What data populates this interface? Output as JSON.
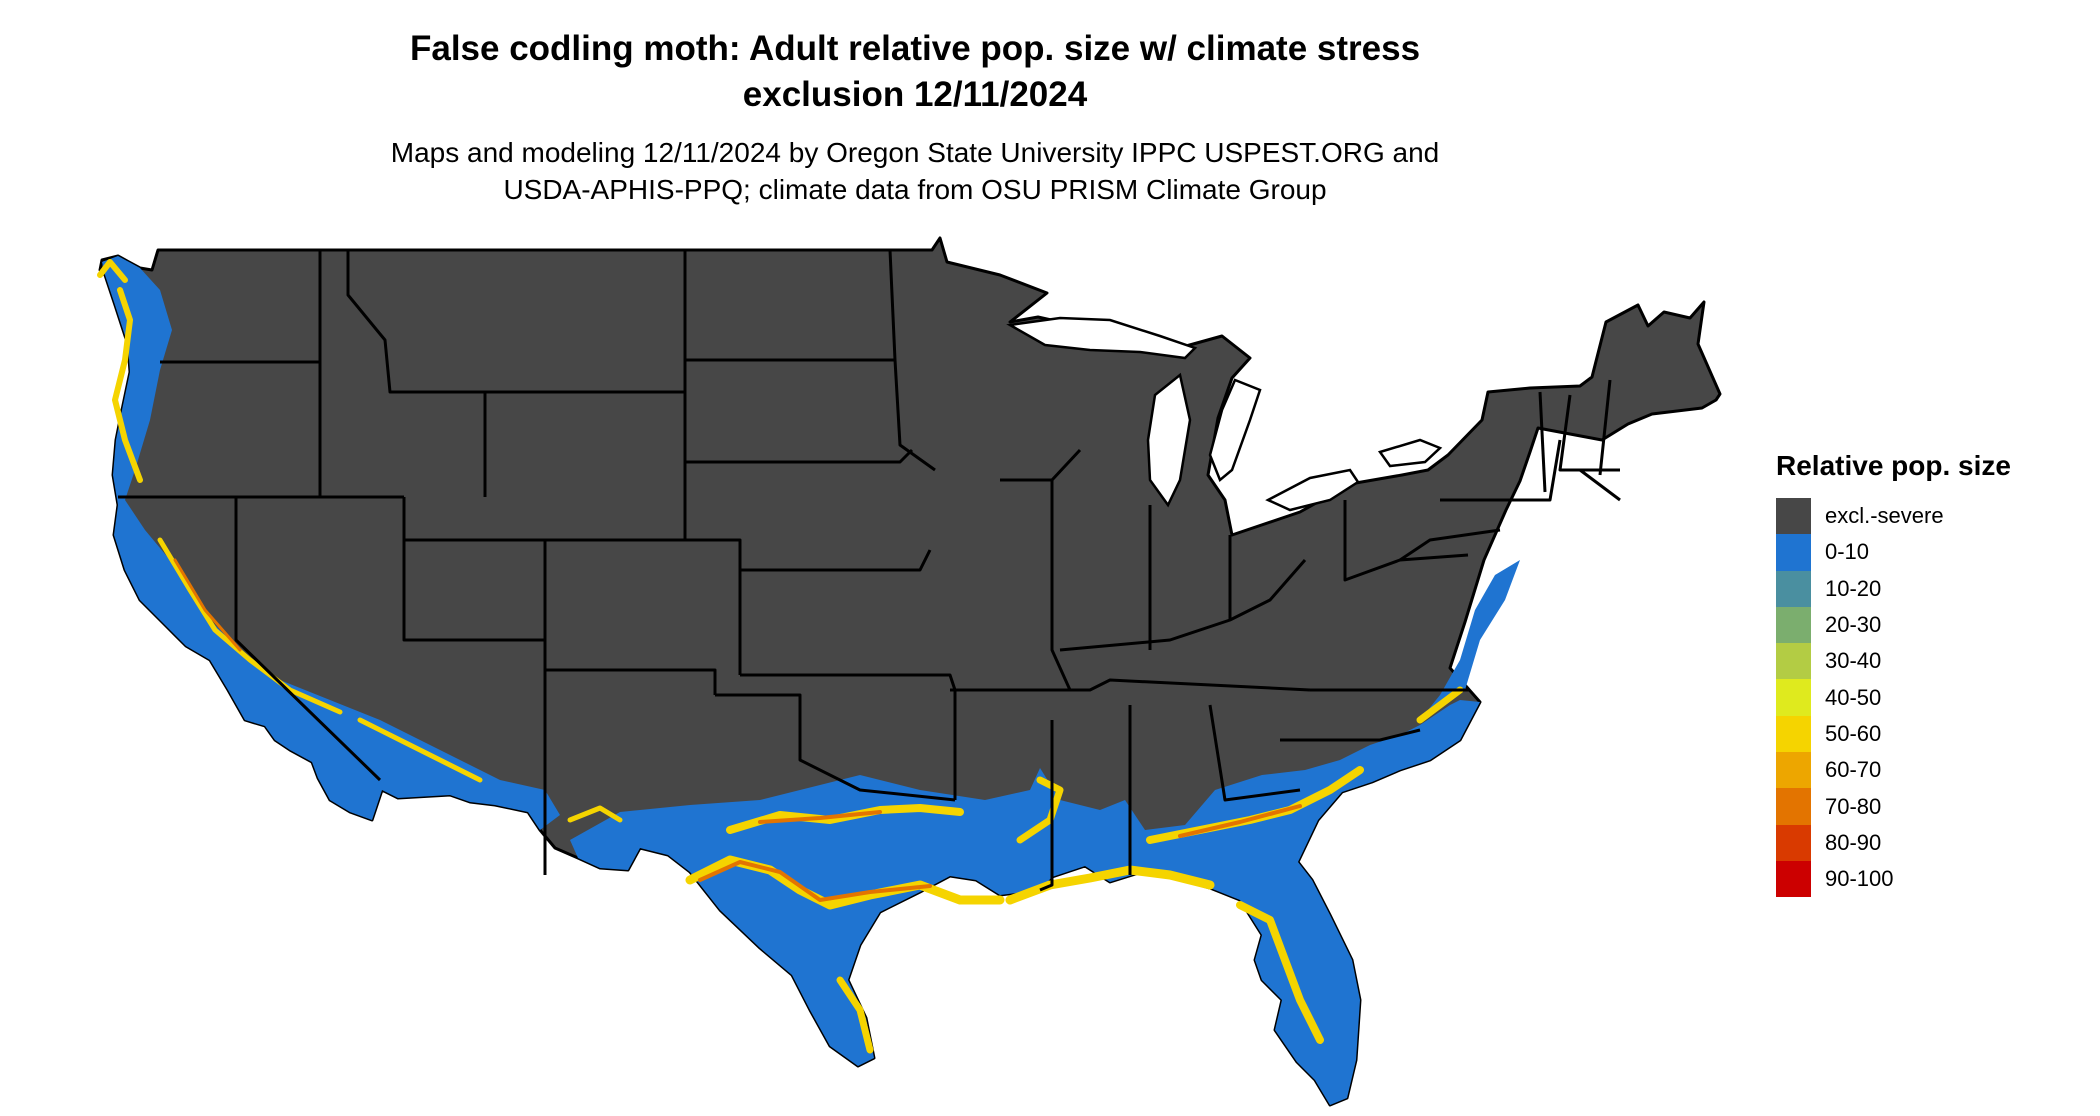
{
  "title_line1": "False codling moth: Adult relative pop. size w/ climate stress",
  "title_line2": "exclusion 12/11/2024",
  "subtitle_line1": "Maps and modeling 12/11/2024 by Oregon State University IPPC USPEST.ORG and",
  "subtitle_line2": "USDA-APHIS-PPQ; climate data from OSU PRISM Climate Group",
  "legend": {
    "title": "Relative pop. size",
    "items": [
      {
        "label": "excl.-severe",
        "color": "#474747"
      },
      {
        "label": "0-10",
        "color": "#1f74d1"
      },
      {
        "label": "10-20",
        "color": "#4a8fa0"
      },
      {
        "label": "20-30",
        "color": "#7bae6e"
      },
      {
        "label": "30-40",
        "color": "#b3cc44"
      },
      {
        "label": "40-50",
        "color": "#dfea1e"
      },
      {
        "label": "50-60",
        "color": "#f5d400"
      },
      {
        "label": "60-70",
        "color": "#eda600"
      },
      {
        "label": "70-80",
        "color": "#e37400"
      },
      {
        "label": "80-90",
        "color": "#d93a00"
      },
      {
        "label": "90-100",
        "color": "#cc0000"
      }
    ]
  },
  "colors": {
    "excluded": "#474747",
    "low": "#1f74d1",
    "mid": "#f5d400",
    "high": "#e37400",
    "border": "#000000"
  }
}
